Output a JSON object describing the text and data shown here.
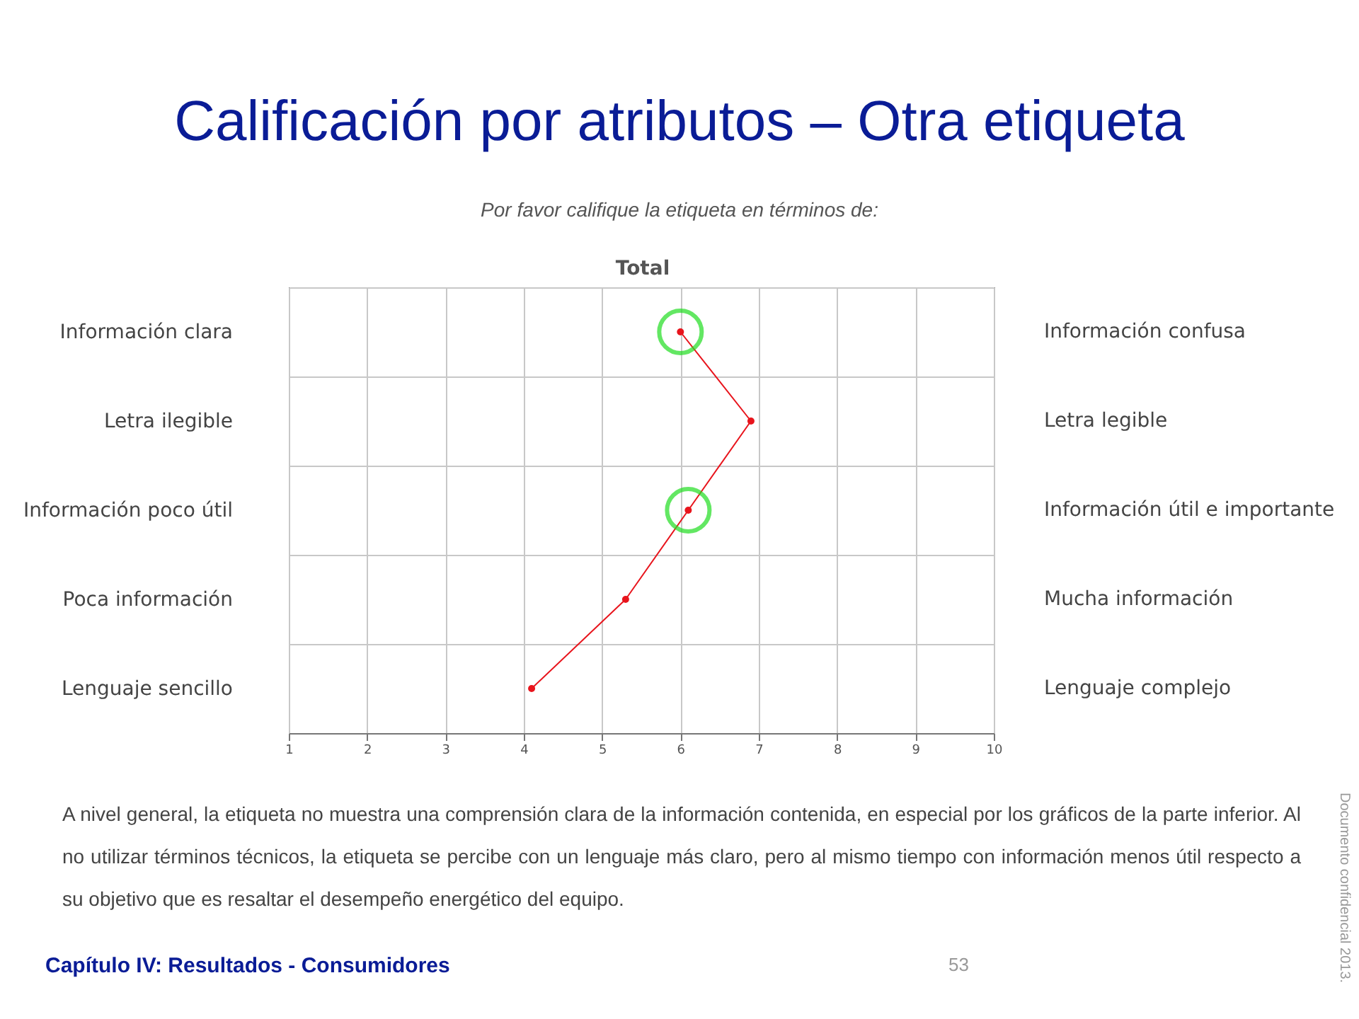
{
  "chart_data": {
    "type": "line",
    "title": "Calificación por atributos – Otra etiqueta",
    "subtitle": "Por favor califique la etiqueta en términos de:",
    "orientation": "horizontal",
    "categories": [
      "Información clara",
      "Letra ilegible",
      "Información poco útil",
      "Poca información",
      "Lenguaje sencillo"
    ],
    "y2_categories": [
      "Información confusa",
      "Letra legible",
      "Información útil e importante",
      "Mucha información",
      "Lenguaje complejo"
    ],
    "series": [
      {
        "name": "Total",
        "color": "#e8141c",
        "values": [
          6.0,
          6.9,
          6.1,
          5.3,
          4.1
        ]
      },
      {
        "type": "scatter",
        "color": "#22dd22",
        "marker": "circle",
        "values": [
          6.0,
          null,
          6.1,
          null,
          null
        ]
      }
    ],
    "xlim": [
      1,
      10
    ],
    "xticks": [
      1,
      2,
      3,
      4,
      5,
      6,
      7,
      8,
      9,
      10
    ],
    "grid": true,
    "marker": "circle",
    "annotations": [
      "A nivel general, la etiqueta no muestra una comprensión clara de la información contenida, en especial por los gráficos de la parte inferior. Al no utilizar términos técnicos, la etiqueta se percibe con un lenguaje más claro, pero al mismo tiempo con información menos útil respecto a su objetivo que es resaltar el desempeño energético del equipo.",
      "Capítulo IV: Resultados - Consumidores",
      "53",
      "Documento confidencial 2013."
    ]
  }
}
